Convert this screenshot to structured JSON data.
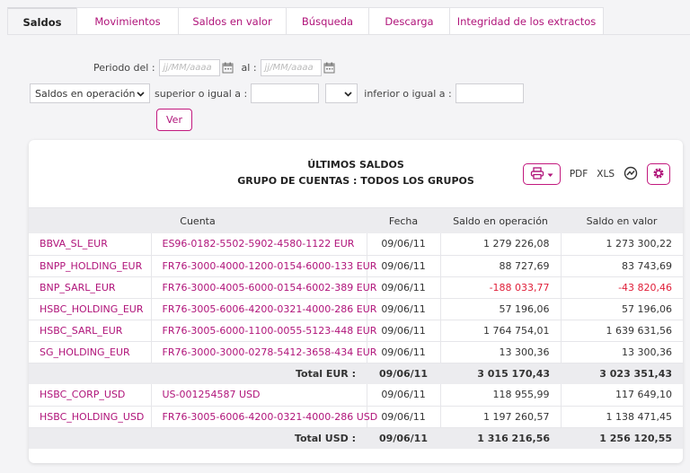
{
  "tabs": [
    {
      "label": "Saldos",
      "active": true
    },
    {
      "label": "Movimientos"
    },
    {
      "label": "Saldos en valor"
    },
    {
      "label": "Búsqueda"
    },
    {
      "label": "Descarga"
    },
    {
      "label": "Integridad de los extractos"
    }
  ],
  "filter": {
    "periodo_label": "Periodo del :",
    "date_placeholder": "jj/MM/aaaa",
    "al_label": "al :",
    "type_select": "Saldos en operación",
    "superior_label": "superior o igual a :",
    "inferior_label": "inferior o igual a :",
    "ver_label": "Ver"
  },
  "panel": {
    "title": "ÚLTIMOS SALDOS",
    "subtitle": "GRUPO DE CUENTAS : TODOS LOS GRUPOS",
    "pdf_label": "PDF",
    "xls_label": "XLS"
  },
  "table": {
    "headers": [
      "Cuenta",
      "Fecha",
      "Saldo en operación",
      "Saldo en valor"
    ],
    "eur_rows": [
      [
        "BBVA_SL_EUR",
        "ES96-0182-5502-5902-4580-1122 EUR",
        "09/06/11",
        "1 279 226,08",
        "1 273 300,22"
      ],
      [
        "BNPP_HOLDING_EUR",
        "FR76-3000-4000-1200-0154-6000-133 EUR",
        "09/06/11",
        "88 727,69",
        "83 743,69"
      ],
      [
        "BNP_SARL_EUR",
        "FR76-3000-4005-6000-0154-6002-389 EUR",
        "09/06/11",
        "-188 033,77",
        "-43 820,46"
      ],
      [
        "HSBC_HOLDING_EUR",
        "FR76-3005-6006-4200-0321-4000-286 EUR",
        "09/06/11",
        "57 196,06",
        "57 196,06"
      ],
      [
        "HSBC_SARL_EUR",
        "FR76-3005-6000-1100-0055-5123-448 EUR",
        "09/06/11",
        "1 764 754,01",
        "1 639 631,56"
      ],
      [
        "SG_HOLDING_EUR",
        "FR76-3000-3000-0278-5412-3658-434 EUR",
        "09/06/11",
        "13 300,36",
        "13 300,36"
      ]
    ],
    "total_eur": [
      "Total EUR :",
      "09/06/11",
      "3 015 170,43",
      "3 023 351,43"
    ],
    "usd_rows": [
      [
        "HSBC_CORP_USD",
        "US-001254587 USD",
        "09/06/11",
        "118 955,99",
        "117 649,10"
      ],
      [
        "HSBC_HOLDING_USD",
        "FR76-3005-6006-4200-0321-4000-286 USD",
        "09/06/11",
        "1 197 260,57",
        "1 138 471,45"
      ]
    ],
    "total_usd": [
      "Total USD :",
      "09/06/11",
      "1 316 216,56",
      "1 256 120,55"
    ]
  },
  "colors": {
    "accent": "#b0147a",
    "negative": "#e0203a"
  },
  "icons": [
    "calendar-icon",
    "chevron-down-icon",
    "printer-icon",
    "chart-icon",
    "gear-icon"
  ]
}
